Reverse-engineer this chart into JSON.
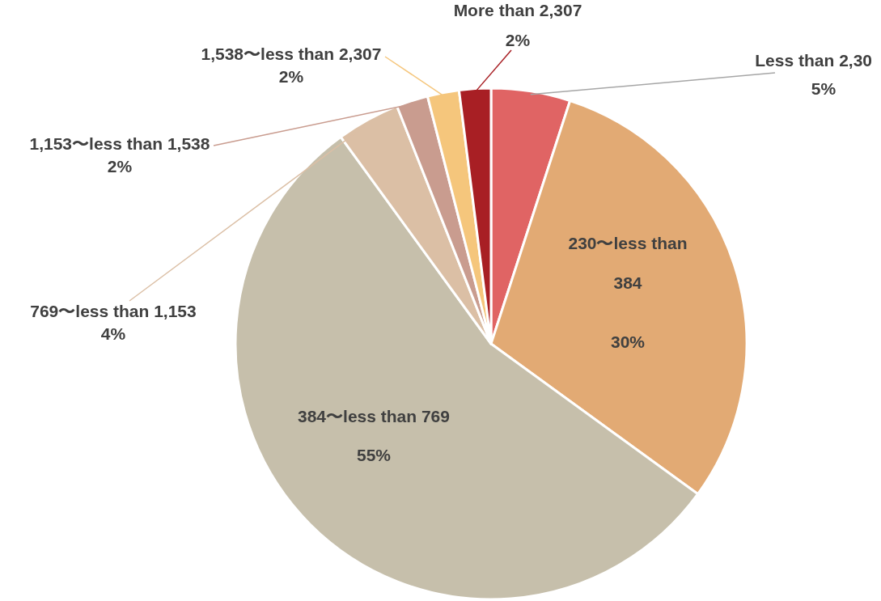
{
  "chart_data": {
    "type": "pie",
    "categories": [
      "Less than 2,30",
      "230〜less than 384",
      "384〜less than 769",
      "769〜less than 1,153",
      "1,153〜less than 1,538",
      "1,538〜less than 2,307",
      "More than 2,307"
    ],
    "values": [
      5,
      30,
      55,
      4,
      2,
      2,
      2
    ],
    "value_labels": [
      "5%",
      "30%",
      "55%",
      "4%",
      "2%",
      "2%",
      "2%"
    ],
    "colors": [
      "#e06464",
      "#e2aa74",
      "#c6bfab",
      "#dbbfa5",
      "#c99c8f",
      "#f5c67c",
      "#a81f24"
    ]
  }
}
